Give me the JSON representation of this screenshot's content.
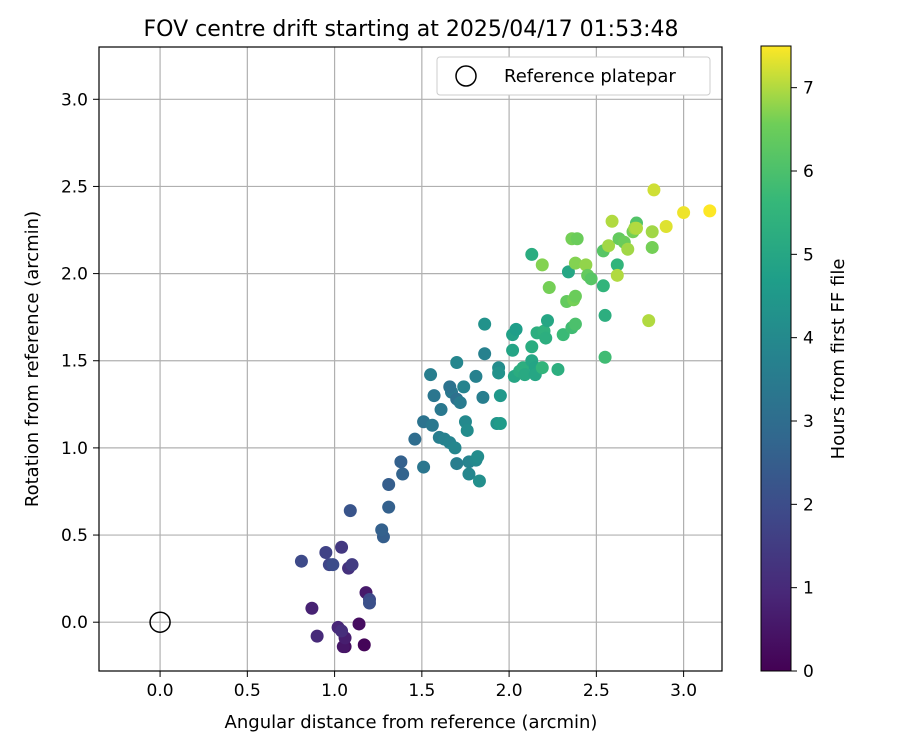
{
  "chart_data": {
    "type": "scatter",
    "title": "FOV centre drift starting at 2025/04/17 01:53:48",
    "xlabel": "Angular distance from reference (arcmin)",
    "ylabel": "Rotation from reference (arcmin)",
    "xlim": [
      -0.35,
      3.22
    ],
    "ylim": [
      -0.28,
      3.3
    ],
    "xticks": [
      "0.0",
      "0.5",
      "1.0",
      "1.5",
      "2.0",
      "2.5",
      "3.0"
    ],
    "yticks": [
      "0.0",
      "0.5",
      "1.0",
      "1.5",
      "2.0",
      "2.5",
      "3.0"
    ],
    "grid": true,
    "legend": {
      "entries": [
        "Reference platepar"
      ],
      "position": "top-right"
    },
    "reference_point": {
      "x": 0.0,
      "y": 0.0,
      "marker": "hollow-circle"
    },
    "colorbar": {
      "label": "Hours from first FF file",
      "range": [
        0,
        7.5
      ],
      "ticks": [
        "0",
        "1",
        "2",
        "3",
        "4",
        "5",
        "6",
        "7"
      ],
      "colormap": "viridis"
    },
    "points": [
      {
        "x": 1.17,
        "y": -0.13,
        "h": 0.1
      },
      {
        "x": 1.06,
        "y": -0.14,
        "h": 0.3
      },
      {
        "x": 1.05,
        "y": -0.14,
        "h": 0.5
      },
      {
        "x": 1.14,
        "y": -0.01,
        "h": 0.3
      },
      {
        "x": 1.06,
        "y": -0.09,
        "h": 0.7
      },
      {
        "x": 1.02,
        "y": -0.03,
        "h": 0.9
      },
      {
        "x": 0.9,
        "y": -0.08,
        "h": 1.0
      },
      {
        "x": 1.04,
        "y": -0.05,
        "h": 1.1
      },
      {
        "x": 0.87,
        "y": 0.08,
        "h": 0.8
      },
      {
        "x": 1.18,
        "y": 0.17,
        "h": 0.6
      },
      {
        "x": 1.2,
        "y": 0.13,
        "h": 1.9
      },
      {
        "x": 1.2,
        "y": 0.11,
        "h": 2.1
      },
      {
        "x": 1.08,
        "y": 0.31,
        "h": 1.2
      },
      {
        "x": 1.1,
        "y": 0.33,
        "h": 1.5
      },
      {
        "x": 1.04,
        "y": 0.43,
        "h": 1.4
      },
      {
        "x": 0.95,
        "y": 0.4,
        "h": 1.7
      },
      {
        "x": 0.97,
        "y": 0.33,
        "h": 1.8
      },
      {
        "x": 0.99,
        "y": 0.33,
        "h": 2.0
      },
      {
        "x": 0.81,
        "y": 0.35,
        "h": 1.9
      },
      {
        "x": 1.09,
        "y": 0.64,
        "h": 2.2
      },
      {
        "x": 1.28,
        "y": 0.49,
        "h": 2.5
      },
      {
        "x": 1.27,
        "y": 0.53,
        "h": 2.6
      },
      {
        "x": 1.31,
        "y": 0.66,
        "h": 2.6
      },
      {
        "x": 1.31,
        "y": 0.79,
        "h": 2.5
      },
      {
        "x": 1.38,
        "y": 0.92,
        "h": 2.6
      },
      {
        "x": 1.39,
        "y": 0.85,
        "h": 2.7
      },
      {
        "x": 1.46,
        "y": 1.05,
        "h": 3.0
      },
      {
        "x": 1.51,
        "y": 0.89,
        "h": 3.3
      },
      {
        "x": 1.51,
        "y": 1.15,
        "h": 3.2
      },
      {
        "x": 1.56,
        "y": 1.13,
        "h": 3.4
      },
      {
        "x": 1.55,
        "y": 1.42,
        "h": 3.6
      },
      {
        "x": 1.57,
        "y": 1.3,
        "h": 3.3
      },
      {
        "x": 1.61,
        "y": 1.22,
        "h": 3.4
      },
      {
        "x": 1.6,
        "y": 1.06,
        "h": 3.6
      },
      {
        "x": 1.63,
        "y": 1.05,
        "h": 3.7
      },
      {
        "x": 1.66,
        "y": 1.03,
        "h": 3.8
      },
      {
        "x": 1.67,
        "y": 1.32,
        "h": 3.4
      },
      {
        "x": 1.66,
        "y": 1.35,
        "h": 3.2
      },
      {
        "x": 1.7,
        "y": 1.28,
        "h": 3.1
      },
      {
        "x": 1.72,
        "y": 1.26,
        "h": 3.5
      },
      {
        "x": 1.74,
        "y": 1.35,
        "h": 3.8
      },
      {
        "x": 1.7,
        "y": 1.49,
        "h": 3.9
      },
      {
        "x": 1.69,
        "y": 1.0,
        "h": 3.9
      },
      {
        "x": 1.7,
        "y": 0.91,
        "h": 3.6
      },
      {
        "x": 1.75,
        "y": 1.15,
        "h": 4.0
      },
      {
        "x": 1.76,
        "y": 1.1,
        "h": 4.1
      },
      {
        "x": 1.77,
        "y": 0.92,
        "h": 3.8
      },
      {
        "x": 1.77,
        "y": 0.85,
        "h": 3.9
      },
      {
        "x": 1.81,
        "y": 0.93,
        "h": 4.0
      },
      {
        "x": 1.82,
        "y": 0.95,
        "h": 4.1
      },
      {
        "x": 1.83,
        "y": 0.81,
        "h": 4.2
      },
      {
        "x": 1.81,
        "y": 1.41,
        "h": 3.7
      },
      {
        "x": 1.85,
        "y": 1.29,
        "h": 3.6
      },
      {
        "x": 1.86,
        "y": 1.54,
        "h": 3.7
      },
      {
        "x": 1.86,
        "y": 1.71,
        "h": 4.3
      },
      {
        "x": 1.93,
        "y": 1.14,
        "h": 4.4
      },
      {
        "x": 1.95,
        "y": 1.14,
        "h": 4.6
      },
      {
        "x": 1.95,
        "y": 1.3,
        "h": 4.5
      },
      {
        "x": 1.94,
        "y": 1.46,
        "h": 4.1
      },
      {
        "x": 1.94,
        "y": 1.43,
        "h": 4.3
      },
      {
        "x": 2.02,
        "y": 1.65,
        "h": 4.8
      },
      {
        "x": 2.04,
        "y": 1.68,
        "h": 4.7
      },
      {
        "x": 2.02,
        "y": 1.56,
        "h": 4.9
      },
      {
        "x": 2.03,
        "y": 1.41,
        "h": 5.0
      },
      {
        "x": 2.06,
        "y": 1.44,
        "h": 5.2
      },
      {
        "x": 2.08,
        "y": 1.46,
        "h": 5.3
      },
      {
        "x": 2.09,
        "y": 1.42,
        "h": 5.1
      },
      {
        "x": 2.13,
        "y": 1.58,
        "h": 5.2
      },
      {
        "x": 2.13,
        "y": 1.5,
        "h": 5.0
      },
      {
        "x": 2.15,
        "y": 1.46,
        "h": 4.9
      },
      {
        "x": 2.15,
        "y": 1.42,
        "h": 5.0
      },
      {
        "x": 2.13,
        "y": 2.11,
        "h": 5.2
      },
      {
        "x": 2.16,
        "y": 1.66,
        "h": 5.3
      },
      {
        "x": 2.2,
        "y": 1.67,
        "h": 5.4
      },
      {
        "x": 2.22,
        "y": 1.73,
        "h": 5.0
      },
      {
        "x": 2.21,
        "y": 1.63,
        "h": 5.3
      },
      {
        "x": 2.28,
        "y": 1.45,
        "h": 5.3
      },
      {
        "x": 2.19,
        "y": 1.46,
        "h": 5.5
      },
      {
        "x": 2.19,
        "y": 2.05,
        "h": 6.7
      },
      {
        "x": 2.23,
        "y": 1.92,
        "h": 6.6
      },
      {
        "x": 2.31,
        "y": 1.65,
        "h": 5.7
      },
      {
        "x": 2.33,
        "y": 1.84,
        "h": 6.4
      },
      {
        "x": 2.34,
        "y": 2.01,
        "h": 5.0
      },
      {
        "x": 2.36,
        "y": 1.69,
        "h": 5.8
      },
      {
        "x": 2.37,
        "y": 1.85,
        "h": 6.6
      },
      {
        "x": 2.38,
        "y": 1.71,
        "h": 6.0
      },
      {
        "x": 2.38,
        "y": 1.87,
        "h": 6.5
      },
      {
        "x": 2.36,
        "y": 2.2,
        "h": 6.6
      },
      {
        "x": 2.39,
        "y": 2.2,
        "h": 6.5
      },
      {
        "x": 2.38,
        "y": 2.06,
        "h": 6.7
      },
      {
        "x": 2.44,
        "y": 2.05,
        "h": 6.8
      },
      {
        "x": 2.45,
        "y": 1.99,
        "h": 6.4
      },
      {
        "x": 2.47,
        "y": 1.97,
        "h": 6.2
      },
      {
        "x": 2.54,
        "y": 2.13,
        "h": 6.2
      },
      {
        "x": 2.54,
        "y": 1.93,
        "h": 5.5
      },
      {
        "x": 2.55,
        "y": 1.76,
        "h": 5.3
      },
      {
        "x": 2.55,
        "y": 1.52,
        "h": 5.8
      },
      {
        "x": 2.57,
        "y": 2.16,
        "h": 6.9
      },
      {
        "x": 2.59,
        "y": 2.3,
        "h": 7.0
      },
      {
        "x": 2.62,
        "y": 2.05,
        "h": 5.5
      },
      {
        "x": 2.62,
        "y": 1.99,
        "h": 7.0
      },
      {
        "x": 2.63,
        "y": 2.2,
        "h": 6.4
      },
      {
        "x": 2.66,
        "y": 2.18,
        "h": 6.5
      },
      {
        "x": 2.68,
        "y": 2.14,
        "h": 6.9
      },
      {
        "x": 2.71,
        "y": 2.24,
        "h": 6.6
      },
      {
        "x": 2.73,
        "y": 2.29,
        "h": 6.1
      },
      {
        "x": 2.72,
        "y": 2.26,
        "h": 6.9
      },
      {
        "x": 2.73,
        "y": 2.26,
        "h": 7.0
      },
      {
        "x": 2.8,
        "y": 1.73,
        "h": 7.0
      },
      {
        "x": 2.82,
        "y": 2.24,
        "h": 6.9
      },
      {
        "x": 2.82,
        "y": 2.15,
        "h": 6.6
      },
      {
        "x": 2.83,
        "y": 2.48,
        "h": 7.2
      },
      {
        "x": 2.9,
        "y": 2.27,
        "h": 7.3
      },
      {
        "x": 3.0,
        "y": 2.35,
        "h": 7.4
      },
      {
        "x": 3.15,
        "y": 2.36,
        "h": 7.5
      }
    ]
  }
}
